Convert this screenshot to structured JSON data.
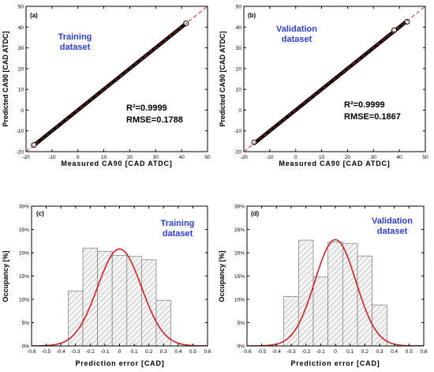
{
  "colors": {
    "axis": "#000000",
    "fit_line": "#cc2222",
    "marker": "#000000",
    "callout": "#2a3fcc",
    "bar_hatch": "#8a8a8a",
    "bar_fill": "#f4f4f4"
  },
  "chart_data": [
    {
      "type": "scatter",
      "panel_label": "(a)",
      "callout": [
        "Training",
        "dataset"
      ],
      "stats": {
        "r2": "R²=0.9999",
        "rmse": "RMSE=0.1788"
      },
      "xlabel": "Measured CA90 [CAD ATDC]",
      "ylabel": "Predicted CA90 [CAD ATDC]",
      "xlim": [
        -20,
        50
      ],
      "ylim": [
        -20,
        50
      ],
      "xticks": [
        -20,
        -10,
        0,
        10,
        20,
        30,
        40,
        50
      ],
      "yticks": [
        -20,
        -10,
        0,
        10,
        20,
        30,
        40,
        50
      ],
      "reference_line": "y = x (dashed)",
      "data_range": {
        "min": -17,
        "max": 42
      },
      "outliers": [
        [
          -17,
          -16.8
        ],
        [
          41.7,
          41.8
        ]
      ]
    },
    {
      "type": "scatter",
      "panel_label": "(b)",
      "callout": [
        "Validation",
        "dataset"
      ],
      "stats": {
        "r2": "R²=0.9999",
        "rmse": "RMSE=0.1867"
      },
      "xlabel": "Measured CA90 [CAD ATDC]",
      "ylabel": "Predicted CA90 [CAD ATDC]",
      "xlim": [
        -20,
        50
      ],
      "ylim": [
        -20,
        50
      ],
      "xticks": [
        -20,
        -10,
        0,
        10,
        20,
        30,
        40,
        50
      ],
      "yticks": [
        -20,
        -10,
        0,
        10,
        20,
        30,
        40,
        50
      ],
      "reference_line": "y = x (dashed)",
      "data_range": {
        "min": -16,
        "max": 43
      },
      "outliers": [
        [
          -16,
          -15.5
        ],
        [
          43,
          42.6
        ],
        [
          38,
          38.5
        ]
      ]
    },
    {
      "type": "bar",
      "subtype": "histogram with normal fit",
      "panel_label": "(c)",
      "callout": [
        "Training",
        "dataset"
      ],
      "xlabel": "Prediction error [CAD]",
      "ylabel": "Occupancy [%]",
      "xlim": [
        -0.6,
        0.6
      ],
      "ylim": [
        0,
        30
      ],
      "xticks": [
        "-0.6",
        "-0.5",
        "-0.4",
        "-0.3",
        "-0.2",
        "-0.1",
        "0",
        "0.1",
        "0.2",
        "0.3",
        "0.4",
        "0.5",
        "0.6"
      ],
      "yticks": [
        "0%",
        "5%",
        "10%",
        "15%",
        "20%",
        "25%",
        "30%"
      ],
      "bins": [
        {
          "from": -0.35,
          "to": -0.25,
          "value": 11.8
        },
        {
          "from": -0.25,
          "to": -0.15,
          "value": 21.0
        },
        {
          "from": -0.15,
          "to": -0.05,
          "value": 20.3
        },
        {
          "from": -0.05,
          "to": 0.05,
          "value": 19.4
        },
        {
          "from": 0.05,
          "to": 0.15,
          "value": 19.2
        },
        {
          "from": 0.15,
          "to": 0.25,
          "value": 18.5
        },
        {
          "from": 0.25,
          "to": 0.35,
          "value": 9.8
        }
      ],
      "normal_fit": {
        "mean": 0.0,
        "peak": 20.8,
        "sd": 0.15
      }
    },
    {
      "type": "bar",
      "subtype": "histogram with normal fit",
      "panel_label": "(d)",
      "callout": [
        "Validation",
        "dataset"
      ],
      "xlabel": "Prediction error [CAD]",
      "ylabel": "Occupancy [%]",
      "xlim": [
        -0.6,
        0.6
      ],
      "ylim": [
        0,
        30
      ],
      "xticks": [
        "-0.6",
        "-0.5",
        "-0.4",
        "-0.3",
        "-0.2",
        "-0.1",
        "0",
        "0.1",
        "0.2",
        "0.3",
        "0.4",
        "0.5",
        "0.6"
      ],
      "yticks": [
        "0%",
        "5%",
        "10%",
        "15%",
        "20%",
        "25%",
        "30%"
      ],
      "bins": [
        {
          "from": -0.35,
          "to": -0.25,
          "value": 10.6
        },
        {
          "from": -0.25,
          "to": -0.15,
          "value": 22.7
        },
        {
          "from": -0.15,
          "to": -0.05,
          "value": 14.8
        },
        {
          "from": -0.05,
          "to": 0.05,
          "value": 22.3
        },
        {
          "from": 0.05,
          "to": 0.15,
          "value": 22.0
        },
        {
          "from": 0.15,
          "to": 0.25,
          "value": 19.3
        },
        {
          "from": 0.25,
          "to": 0.35,
          "value": 8.8
        }
      ],
      "normal_fit": {
        "mean": 0.0,
        "peak": 22.8,
        "sd": 0.14
      }
    }
  ]
}
